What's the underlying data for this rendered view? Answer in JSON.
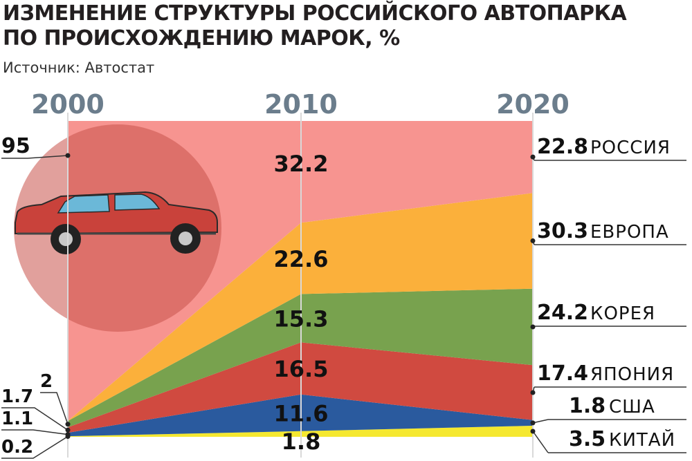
{
  "title_line1": "ИЗМЕНЕНИЕ СТРУКТУРЫ РОССИЙСКОГО АВТОПАРКА",
  "title_line2": "ПО ПРОИСХОЖДЕНИЮ МАРОК, %",
  "source": "Источник: Автостат",
  "chart_data": {
    "type": "area",
    "stacked": true,
    "x": [
      "2000",
      "2010",
      "2020"
    ],
    "series": [
      {
        "name": "КИТАЙ",
        "values": [
          0.2,
          1.8,
          3.5
        ],
        "labels": [
          "0.2",
          "1.8",
          "3.5"
        ],
        "color": "#f5e830"
      },
      {
        "name": "США",
        "values": [
          1.1,
          11.6,
          1.8
        ],
        "labels": [
          "1.1",
          "11.6",
          "1.8"
        ],
        "color": "#2a5a9e"
      },
      {
        "name": "ЯПОНИЯ",
        "values": [
          1.7,
          16.5,
          17.4
        ],
        "labels": [
          "1.7",
          "16.5",
          "17.4"
        ],
        "color": "#d04a40"
      },
      {
        "name": "КОРЕЯ",
        "values": [
          2,
          15.3,
          24.2
        ],
        "labels": [
          "2",
          "15.3",
          "24.2"
        ],
        "color": "#78a24e"
      },
      {
        "name": "ЕВРОПА",
        "values": [
          0,
          22.6,
          30.3
        ],
        "labels": [
          "",
          "22.6",
          "30.3"
        ],
        "color": "#fbb03b"
      },
      {
        "name": "РОССИЯ",
        "values": [
          95,
          32.2,
          22.8
        ],
        "labels": [
          "95",
          "32.2",
          "22.8"
        ],
        "color": "#f79490"
      }
    ],
    "ylim": [
      0,
      100
    ],
    "legend_position": "right"
  }
}
